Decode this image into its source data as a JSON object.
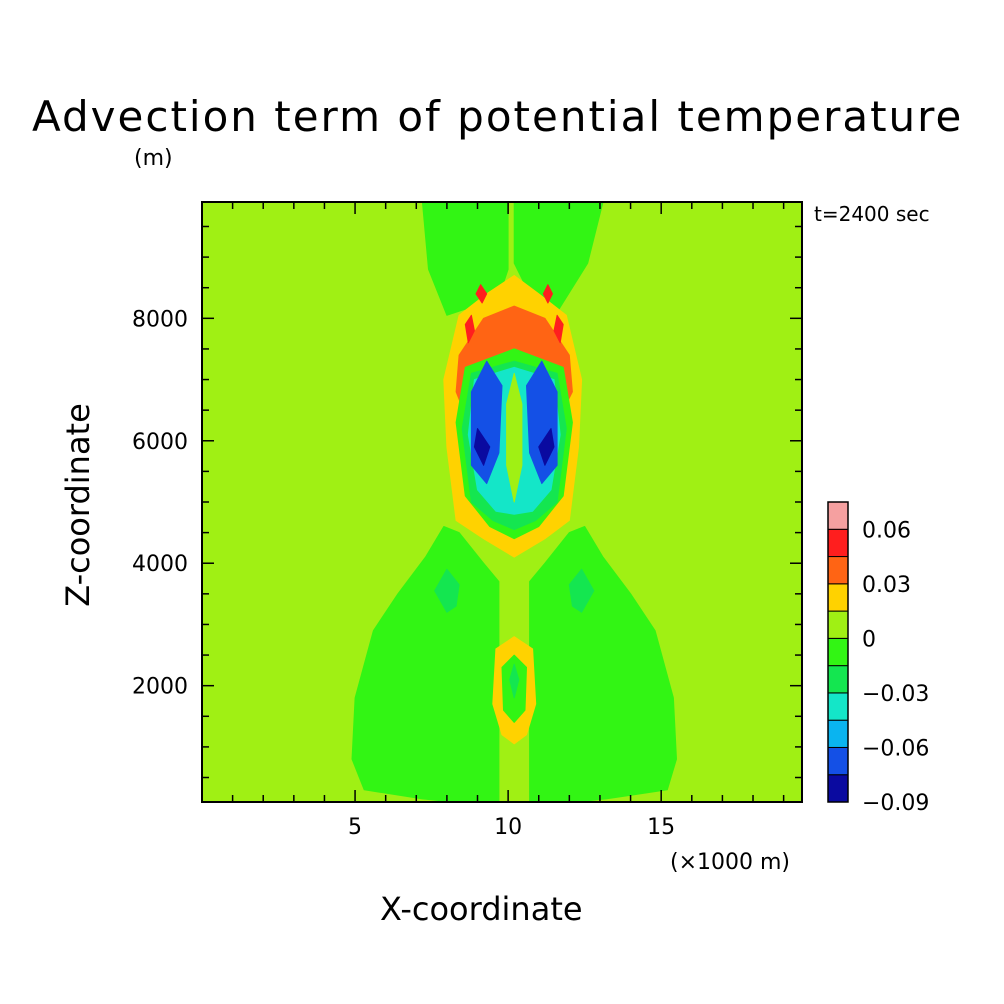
{
  "chart_data": {
    "type": "heatmap",
    "title": "Advection term of potential temperature",
    "ylabel": "Z-coordinate",
    "yunit": "(m)",
    "xlabel": "X-coordinate",
    "xunit": "(×1000 m)",
    "annotation": "t=2400 sec",
    "xlim": [
      0,
      19.6
    ],
    "ylim": [
      100,
      9900
    ],
    "xticks_labeled": [
      5,
      10,
      15
    ],
    "yticks_labeled": [
      2000,
      4000,
      6000,
      8000
    ],
    "xtick_labels": [
      "5",
      "10",
      "15"
    ],
    "ytick_labels": [
      "2000",
      "4000",
      "6000",
      "8000"
    ],
    "colorbar": {
      "levels": [
        -0.09,
        -0.075,
        -0.06,
        -0.045,
        -0.03,
        -0.015,
        0,
        0.015,
        0.03,
        0.045,
        0.06,
        0.075
      ],
      "colors": [
        "#0a0aa0",
        "#1450e6",
        "#0ab4f0",
        "#14e6c8",
        "#14e650",
        "#32f514",
        "#a0f014",
        "#ffd200",
        "#ff6414",
        "#ff1e1e",
        "#f5a0a0"
      ],
      "labels": [
        {
          "value": -0.09,
          "text": "−0.09"
        },
        {
          "value": -0.06,
          "text": "−0.06"
        },
        {
          "value": -0.03,
          "text": "−0.03"
        },
        {
          "value": 0,
          "text": "0"
        },
        {
          "value": 0.03,
          "text": "0.03"
        },
        {
          "value": 0.06,
          "text": "0.06"
        }
      ]
    },
    "background_level": 0.005,
    "regions": [
      {
        "name": "lower-left-lobe",
        "value": -0.005,
        "points": [
          [
            8.2,
            100
          ],
          [
            7.2,
            150
          ],
          [
            5.3,
            300
          ],
          [
            4.9,
            800
          ],
          [
            5.0,
            1800
          ],
          [
            5.6,
            2900
          ],
          [
            6.4,
            3500
          ],
          [
            7.3,
            4100
          ],
          [
            7.9,
            4600
          ],
          [
            8.4,
            4500
          ],
          [
            9.2,
            4000
          ],
          [
            9.7,
            3700
          ],
          [
            9.7,
            100
          ]
        ]
      },
      {
        "name": "lower-right-lobe",
        "value": -0.005,
        "points": [
          [
            12.2,
            100
          ],
          [
            13.2,
            150
          ],
          [
            15.2,
            300
          ],
          [
            15.5,
            800
          ],
          [
            15.4,
            1800
          ],
          [
            14.8,
            2900
          ],
          [
            14.0,
            3500
          ],
          [
            13.1,
            4100
          ],
          [
            12.5,
            4600
          ],
          [
            12.0,
            4500
          ],
          [
            11.2,
            4000
          ],
          [
            10.7,
            3700
          ],
          [
            10.7,
            100
          ]
        ]
      },
      {
        "name": "upper-left-plume",
        "value": -0.005,
        "points": [
          [
            7.2,
            9900
          ],
          [
            7.4,
            8800
          ],
          [
            8.0,
            8050
          ],
          [
            8.9,
            8200
          ],
          [
            9.8,
            8500
          ],
          [
            10.0,
            8800
          ],
          [
            10.0,
            9900
          ]
        ]
      },
      {
        "name": "upper-right-plume",
        "value": -0.005,
        "points": [
          [
            13.1,
            9900
          ],
          [
            12.6,
            8900
          ],
          [
            11.6,
            8100
          ],
          [
            11.0,
            8300
          ],
          [
            10.5,
            8600
          ],
          [
            10.2,
            8900
          ],
          [
            10.2,
            9900
          ]
        ]
      },
      {
        "name": "left-pocket",
        "value": -0.02,
        "points": [
          [
            7.6,
            3550
          ],
          [
            8.0,
            3200
          ],
          [
            8.3,
            3300
          ],
          [
            8.4,
            3650
          ],
          [
            8.0,
            3900
          ]
        ]
      },
      {
        "name": "right-pocket",
        "value": -0.02,
        "points": [
          [
            12.0,
            3650
          ],
          [
            12.1,
            3300
          ],
          [
            12.4,
            3200
          ],
          [
            12.8,
            3550
          ],
          [
            12.4,
            3900
          ]
        ]
      },
      {
        "name": "yellow-ring",
        "value": 0.02,
        "points": [
          [
            10.2,
            8700
          ],
          [
            9.3,
            8400
          ],
          [
            8.4,
            8050
          ],
          [
            7.9,
            7000
          ],
          [
            8.0,
            5900
          ],
          [
            8.3,
            4700
          ],
          [
            9.2,
            4400
          ],
          [
            10.2,
            4100
          ],
          [
            11.2,
            4400
          ],
          [
            12.0,
            4700
          ],
          [
            12.3,
            5900
          ],
          [
            12.4,
            7000
          ],
          [
            11.9,
            8050
          ],
          [
            11.0,
            8400
          ]
        ]
      },
      {
        "name": "orange-ring",
        "value": 0.035,
        "points": [
          [
            10.2,
            8200
          ],
          [
            9.2,
            8000
          ],
          [
            8.4,
            7400
          ],
          [
            8.3,
            6800
          ],
          [
            8.7,
            6300
          ],
          [
            10.2,
            6500
          ],
          [
            11.6,
            6300
          ],
          [
            12.1,
            6800
          ],
          [
            12.0,
            7400
          ],
          [
            11.2,
            8000
          ]
        ]
      },
      {
        "name": "green-core-band",
        "value": -0.005,
        "points": [
          [
            10.2,
            7500
          ],
          [
            8.6,
            7200
          ],
          [
            8.3,
            6300
          ],
          [
            8.6,
            5100
          ],
          [
            9.4,
            4600
          ],
          [
            10.2,
            4400
          ],
          [
            11.0,
            4600
          ],
          [
            11.8,
            5100
          ],
          [
            12.1,
            6300
          ],
          [
            11.8,
            7200
          ]
        ]
      },
      {
        "name": "teal-core",
        "value": -0.02,
        "points": [
          [
            10.2,
            7300
          ],
          [
            8.8,
            7100
          ],
          [
            8.5,
            6200
          ],
          [
            8.8,
            5000
          ],
          [
            9.5,
            4700
          ],
          [
            10.2,
            4550
          ],
          [
            10.9,
            4700
          ],
          [
            11.6,
            5000
          ],
          [
            11.9,
            6200
          ],
          [
            11.6,
            7100
          ]
        ]
      },
      {
        "name": "cyan-core",
        "value": -0.04,
        "points": [
          [
            10.2,
            7200
          ],
          [
            8.9,
            7000
          ],
          [
            8.7,
            6100
          ],
          [
            9.0,
            5200
          ],
          [
            9.6,
            4850
          ],
          [
            10.2,
            4800
          ],
          [
            10.8,
            4850
          ],
          [
            11.4,
            5200
          ],
          [
            11.7,
            6100
          ],
          [
            11.5,
            7000
          ]
        ]
      },
      {
        "name": "blue-left",
        "value": -0.065,
        "points": [
          [
            9.3,
            7300
          ],
          [
            8.8,
            6800
          ],
          [
            8.8,
            5600
          ],
          [
            9.3,
            5300
          ],
          [
            9.7,
            5800
          ],
          [
            9.8,
            6900
          ]
        ]
      },
      {
        "name": "blue-right",
        "value": -0.065,
        "points": [
          [
            11.1,
            7300
          ],
          [
            11.6,
            6800
          ],
          [
            11.6,
            5600
          ],
          [
            11.1,
            5300
          ],
          [
            10.7,
            5800
          ],
          [
            10.6,
            6900
          ]
        ]
      },
      {
        "name": "navy-left",
        "value": -0.08,
        "points": [
          [
            9.0,
            6200
          ],
          [
            8.9,
            5900
          ],
          [
            9.2,
            5600
          ],
          [
            9.4,
            5900
          ]
        ]
      },
      {
        "name": "navy-right",
        "value": -0.08,
        "points": [
          [
            11.4,
            6200
          ],
          [
            11.5,
            5900
          ],
          [
            11.2,
            5600
          ],
          [
            11.0,
            5900
          ]
        ]
      },
      {
        "name": "central-ridge",
        "value": 0.005,
        "points": [
          [
            10.2,
            7100
          ],
          [
            9.95,
            6600
          ],
          [
            9.95,
            5600
          ],
          [
            10.2,
            5000
          ],
          [
            10.45,
            5600
          ],
          [
            10.45,
            6600
          ]
        ]
      },
      {
        "name": "red-spot-left-top",
        "value": 0.05,
        "points": [
          [
            9.1,
            8550
          ],
          [
            8.95,
            8400
          ],
          [
            9.15,
            8250
          ],
          [
            9.3,
            8400
          ]
        ]
      },
      {
        "name": "red-spot-right-top",
        "value": 0.05,
        "points": [
          [
            11.3,
            8550
          ],
          [
            11.15,
            8400
          ],
          [
            11.3,
            8250
          ],
          [
            11.45,
            8400
          ]
        ]
      },
      {
        "name": "red-spot-left",
        "value": 0.05,
        "points": [
          [
            8.8,
            8050
          ],
          [
            8.6,
            7900
          ],
          [
            8.7,
            7600
          ],
          [
            8.9,
            7800
          ]
        ]
      },
      {
        "name": "red-spot-right",
        "value": 0.05,
        "points": [
          [
            11.6,
            8050
          ],
          [
            11.8,
            7900
          ],
          [
            11.7,
            7600
          ],
          [
            11.5,
            7800
          ]
        ]
      },
      {
        "name": "low-yellow-column",
        "value": 0.02,
        "points": [
          [
            10.2,
            2800
          ],
          [
            9.6,
            2600
          ],
          [
            9.5,
            1700
          ],
          [
            9.8,
            1200
          ],
          [
            10.2,
            1050
          ],
          [
            10.6,
            1200
          ],
          [
            10.9,
            1700
          ],
          [
            10.8,
            2600
          ]
        ]
      },
      {
        "name": "low-green-core",
        "value": -0.005,
        "points": [
          [
            10.2,
            2500
          ],
          [
            9.8,
            2300
          ],
          [
            9.85,
            1600
          ],
          [
            10.2,
            1400
          ],
          [
            10.55,
            1600
          ],
          [
            10.6,
            2300
          ]
        ]
      },
      {
        "name": "low-teal-core",
        "value": -0.02,
        "points": [
          [
            10.2,
            2350
          ],
          [
            10.05,
            2100
          ],
          [
            10.2,
            1800
          ],
          [
            10.35,
            2100
          ]
        ]
      }
    ]
  }
}
